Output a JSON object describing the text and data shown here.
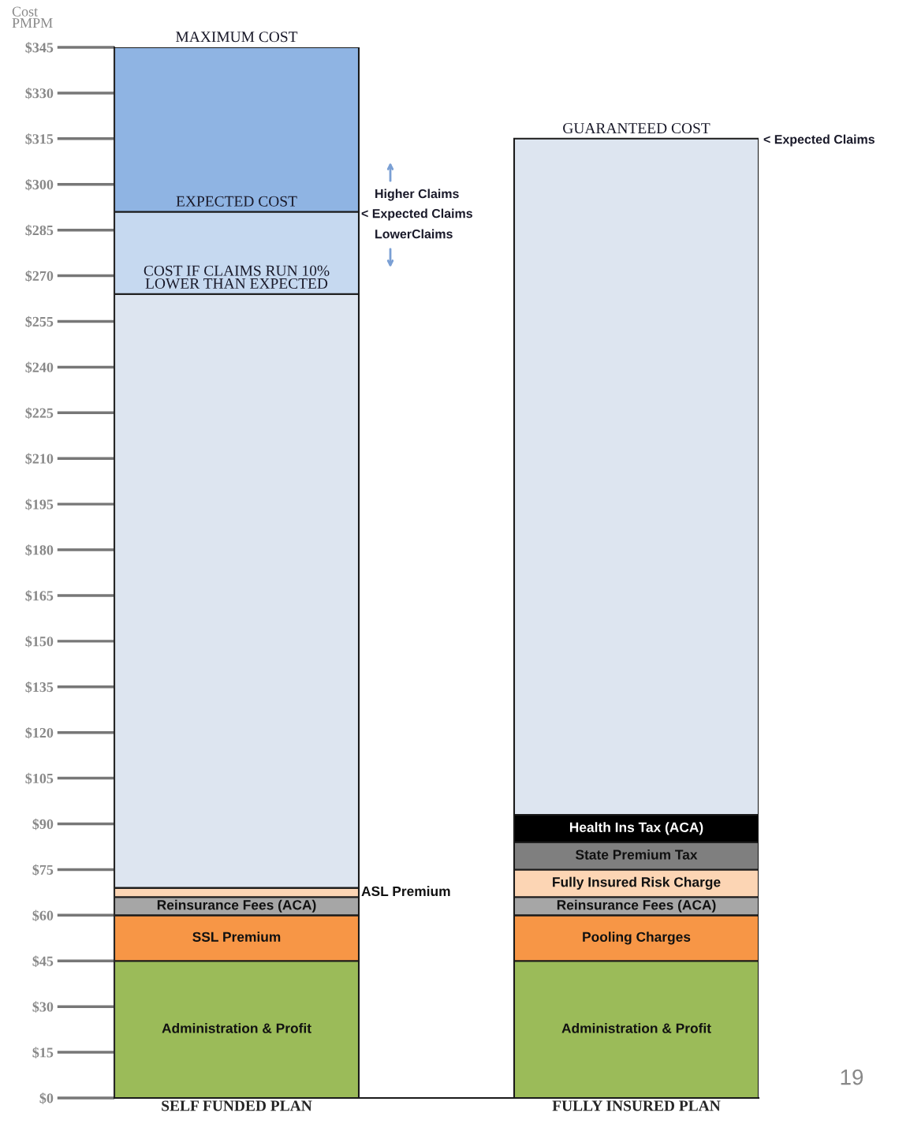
{
  "chart_data": {
    "type": "bar",
    "stacked": true,
    "ylabel": "Cost\nPMPM",
    "categories": [
      "SELF FUNDED PLAN",
      "FULLY INSURED PLAN"
    ],
    "series": [
      {
        "name": "Administration & Profit",
        "color": "#9bbb59",
        "values": [
          45,
          45
        ]
      },
      {
        "name": "SSL Premium",
        "color": "#f79646",
        "values": [
          15,
          null
        ]
      },
      {
        "name": "Pooling Charges",
        "color": "#f79646",
        "values": [
          null,
          15
        ]
      },
      {
        "name": "Reinsurance Fees (ACA)",
        "color": "#a6a6a6",
        "values": [
          6,
          6
        ]
      },
      {
        "name": "ASL Premium",
        "color": "#fcd5b4",
        "values": [
          3,
          null
        ]
      },
      {
        "name": "Fully Insured Risk Charge",
        "color": "#fcd5b4",
        "values": [
          null,
          9
        ]
      },
      {
        "name": "State Premium Tax",
        "color": "#7f7f7f",
        "values": [
          null,
          9
        ]
      },
      {
        "name": "Health Ins Tax (ACA)",
        "color": "#000000",
        "values": [
          null,
          9
        ]
      },
      {
        "color": "#dde5f0",
        "values": [
          195,
          222
        ]
      },
      {
        "color": "#c6d9f0",
        "values": [
          27,
          null
        ]
      },
      {
        "color": "#8fb4e3",
        "values": [
          54,
          null
        ]
      }
    ],
    "ylim": [
      0,
      345
    ],
    "yticks": [
      {
        "value": 0,
        "label": "$0"
      },
      {
        "value": 15,
        "label": "$15"
      },
      {
        "value": 30,
        "label": "$30"
      },
      {
        "value": 45,
        "label": "$45"
      },
      {
        "value": 60,
        "label": "$60"
      },
      {
        "value": 75,
        "label": "$75"
      },
      {
        "value": 90,
        "label": "$90"
      },
      {
        "value": 105,
        "label": "$105"
      },
      {
        "value": 120,
        "label": "$120"
      },
      {
        "value": 135,
        "label": "$135"
      },
      {
        "value": 150,
        "label": "$150"
      },
      {
        "value": 165,
        "label": "$165"
      },
      {
        "value": 180,
        "label": "$180"
      },
      {
        "value": 195,
        "label": "$195"
      },
      {
        "value": 210,
        "label": "$210"
      },
      {
        "value": 225,
        "label": "$225"
      },
      {
        "value": 240,
        "label": "$240"
      },
      {
        "value": 255,
        "label": "$255"
      },
      {
        "value": 270,
        "label": "$270"
      },
      {
        "value": 285,
        "label": "$285"
      },
      {
        "value": 300,
        "label": "$300"
      },
      {
        "value": 315,
        "label": "$315"
      },
      {
        "value": 330,
        "label": "$330"
      },
      {
        "value": 345,
        "label": "$345"
      }
    ],
    "annotations": [
      {
        "text": "MAXIMUM COST",
        "x": "SELF FUNDED PLAN",
        "y": 345
      },
      {
        "text": "EXPECTED COST",
        "x": "SELF FUNDED PLAN",
        "y": 291
      },
      {
        "text": "COST IF CLAIMS RUN 10%\nLOWER THAN EXPECTED",
        "x": "SELF FUNDED PLAN",
        "y": 264
      },
      {
        "text": "GUARANTEED COST",
        "x": "FULLY INSURED PLAN",
        "y": 315
      },
      "< Expected Claims",
      "Higher Claims",
      "< Expected Claims",
      "LowerClaims",
      "19"
    ]
  }
}
